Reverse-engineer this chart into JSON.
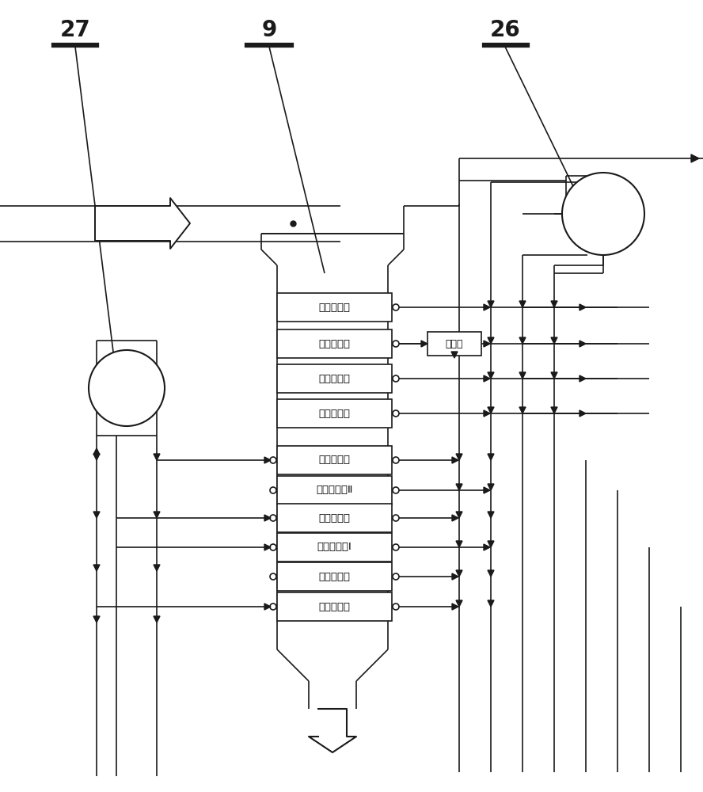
{
  "bg_color": "#ffffff",
  "line_color": "#1a1a1a",
  "box_labels": [
    "二级过热器",
    "一级过热器",
    "中压蔓发器",
    "中压蔓发器",
    "低压过热器",
    "中压省煤器Ⅱ",
    "低压蔓发器",
    "中压省煤器Ⅰ",
    "低压省煤器",
    "低温省煤器"
  ],
  "jianshi_label": "减温器",
  "label_27": "27",
  "label_9": "9",
  "label_26": "26",
  "figsize": [
    8.88,
    10.0
  ],
  "dpi": 100
}
